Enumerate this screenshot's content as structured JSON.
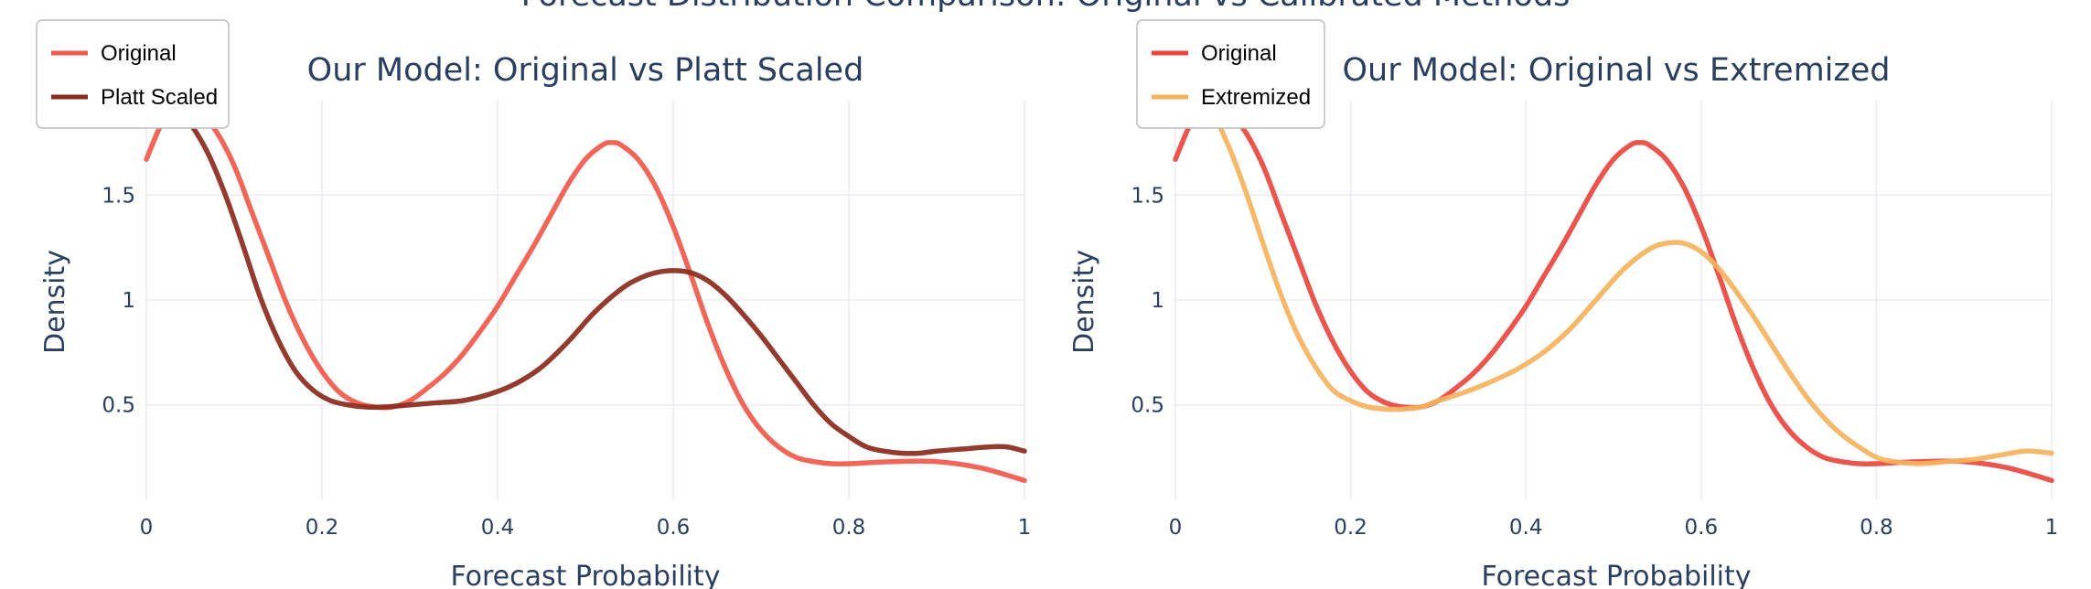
{
  "suptitle": "Forecast Distribution Comparison: Original vs Calibrated Methods",
  "chart_data": [
    {
      "type": "line",
      "title": "Our Model: Original vs Platt Scaled",
      "xlabel": "Forecast Probability",
      "ylabel": "Density",
      "xlim": [
        0,
        1
      ],
      "ylim": [
        0.05,
        1.95
      ],
      "xticks": [
        0,
        0.2,
        0.4,
        0.6,
        0.8,
        1
      ],
      "xticklabels": [
        "0",
        "0.2",
        "0.4",
        "0.6",
        "0.8",
        "1"
      ],
      "yticks": [
        0.5,
        1,
        1.5
      ],
      "yticklabels": [
        "0.5",
        "1",
        "1.5"
      ],
      "legend_position": "top-left",
      "series": [
        {
          "name": "Original",
          "color": "#ef5a4b",
          "x": [
            0,
            0.02,
            0.04,
            0.06,
            0.08,
            0.1,
            0.12,
            0.14,
            0.16,
            0.18,
            0.2,
            0.22,
            0.24,
            0.26,
            0.28,
            0.3,
            0.32,
            0.34,
            0.36,
            0.38,
            0.4,
            0.42,
            0.44,
            0.46,
            0.48,
            0.5,
            0.52,
            0.53,
            0.54,
            0.56,
            0.58,
            0.6,
            0.62,
            0.64,
            0.66,
            0.68,
            0.7,
            0.72,
            0.74,
            0.76,
            0.78,
            0.8,
            0.85,
            0.9,
            0.95,
            1
          ],
          "y": [
            1.67,
            1.86,
            1.93,
            1.9,
            1.8,
            1.64,
            1.42,
            1.2,
            0.98,
            0.8,
            0.66,
            0.56,
            0.51,
            0.49,
            0.49,
            0.52,
            0.58,
            0.65,
            0.74,
            0.85,
            0.97,
            1.11,
            1.25,
            1.4,
            1.55,
            1.67,
            1.74,
            1.75,
            1.74,
            1.67,
            1.54,
            1.35,
            1.12,
            0.88,
            0.67,
            0.5,
            0.38,
            0.3,
            0.25,
            0.23,
            0.22,
            0.22,
            0.23,
            0.23,
            0.2,
            0.14
          ]
        },
        {
          "name": "Platt Scaled",
          "color": "#8b2a1e",
          "x": [
            0,
            0.02,
            0.03,
            0.05,
            0.07,
            0.09,
            0.11,
            0.13,
            0.15,
            0.17,
            0.19,
            0.21,
            0.23,
            0.25,
            0.27,
            0.3,
            0.33,
            0.36,
            0.39,
            0.42,
            0.45,
            0.48,
            0.51,
            0.54,
            0.56,
            0.58,
            0.6,
            0.62,
            0.64,
            0.66,
            0.68,
            0.7,
            0.72,
            0.74,
            0.76,
            0.78,
            0.8,
            0.82,
            0.84,
            0.86,
            0.88,
            0.9,
            0.93,
            0.96,
            0.98,
            1
          ],
          "y": [
            1.88,
            1.93,
            1.93,
            1.84,
            1.7,
            1.5,
            1.26,
            1.01,
            0.81,
            0.66,
            0.57,
            0.52,
            0.5,
            0.49,
            0.49,
            0.5,
            0.51,
            0.52,
            0.55,
            0.6,
            0.68,
            0.8,
            0.94,
            1.05,
            1.1,
            1.13,
            1.14,
            1.13,
            1.09,
            1.02,
            0.93,
            0.83,
            0.72,
            0.61,
            0.5,
            0.41,
            0.35,
            0.3,
            0.28,
            0.27,
            0.27,
            0.28,
            0.29,
            0.3,
            0.3,
            0.28
          ]
        }
      ]
    },
    {
      "type": "line",
      "title": "Our Model: Original vs Extremized",
      "xlabel": "Forecast Probability",
      "ylabel": "Density",
      "xlim": [
        0,
        1
      ],
      "ylim": [
        0.05,
        1.95
      ],
      "xticks": [
        0,
        0.2,
        0.4,
        0.6,
        0.8,
        1
      ],
      "xticklabels": [
        "0",
        "0.2",
        "0.4",
        "0.6",
        "0.8",
        "1"
      ],
      "yticks": [
        0.5,
        1,
        1.5
      ],
      "yticklabels": [
        "0.5",
        "1",
        "1.5"
      ],
      "legend_position": "top-left",
      "series": [
        {
          "name": "Original",
          "color": "#e8463f",
          "x": [
            0,
            0.02,
            0.04,
            0.06,
            0.08,
            0.1,
            0.12,
            0.14,
            0.16,
            0.18,
            0.2,
            0.22,
            0.24,
            0.26,
            0.28,
            0.3,
            0.32,
            0.34,
            0.36,
            0.38,
            0.4,
            0.42,
            0.44,
            0.46,
            0.48,
            0.5,
            0.52,
            0.53,
            0.54,
            0.56,
            0.58,
            0.6,
            0.62,
            0.64,
            0.66,
            0.68,
            0.7,
            0.72,
            0.74,
            0.76,
            0.78,
            0.8,
            0.85,
            0.9,
            0.95,
            1
          ],
          "y": [
            1.67,
            1.86,
            1.93,
            1.9,
            1.8,
            1.64,
            1.42,
            1.2,
            0.98,
            0.8,
            0.66,
            0.56,
            0.51,
            0.49,
            0.49,
            0.52,
            0.58,
            0.65,
            0.74,
            0.85,
            0.97,
            1.11,
            1.25,
            1.4,
            1.55,
            1.67,
            1.74,
            1.75,
            1.74,
            1.67,
            1.54,
            1.35,
            1.12,
            0.88,
            0.67,
            0.5,
            0.38,
            0.3,
            0.25,
            0.23,
            0.22,
            0.22,
            0.23,
            0.23,
            0.2,
            0.14
          ]
        },
        {
          "name": "Extremized",
          "color": "#f4b35e",
          "x": [
            0,
            0.02,
            0.04,
            0.06,
            0.08,
            0.1,
            0.12,
            0.14,
            0.16,
            0.18,
            0.2,
            0.22,
            0.24,
            0.26,
            0.28,
            0.3,
            0.33,
            0.36,
            0.39,
            0.42,
            0.45,
            0.48,
            0.51,
            0.54,
            0.56,
            0.58,
            0.6,
            0.62,
            0.64,
            0.66,
            0.68,
            0.7,
            0.72,
            0.74,
            0.76,
            0.78,
            0.8,
            0.82,
            0.85,
            0.88,
            0.91,
            0.94,
            0.97,
            1
          ],
          "y": [
            1.86,
            1.93,
            1.9,
            1.74,
            1.52,
            1.27,
            1.03,
            0.83,
            0.68,
            0.57,
            0.52,
            0.49,
            0.48,
            0.48,
            0.49,
            0.52,
            0.56,
            0.61,
            0.67,
            0.75,
            0.86,
            1.0,
            1.14,
            1.24,
            1.27,
            1.27,
            1.23,
            1.15,
            1.04,
            0.92,
            0.79,
            0.66,
            0.54,
            0.44,
            0.36,
            0.3,
            0.25,
            0.23,
            0.22,
            0.23,
            0.24,
            0.26,
            0.28,
            0.27
          ]
        }
      ]
    }
  ]
}
